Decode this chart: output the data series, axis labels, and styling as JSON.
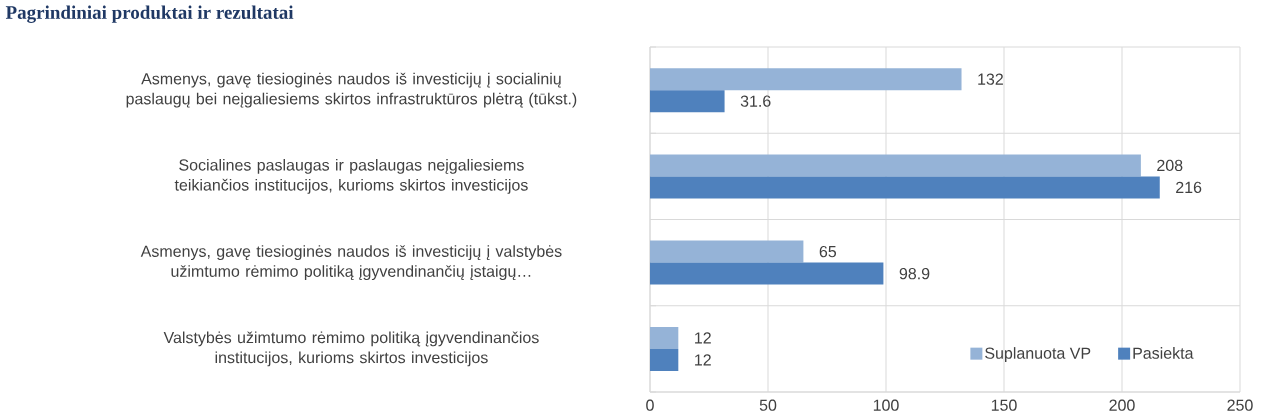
{
  "chart_data": {
    "type": "bar",
    "orientation": "horizontal",
    "title": "Pagrindiniai produktai ir rezultatai",
    "categories": [
      "Asmenys, gavę tiesioginės naudos iš investicijų į socialinių paslaugų bei neįgaliesiems skirtos infrastruktūros plėtrą (tūkst.)",
      "Socialines paslaugas ir paslaugas neįgaliesiems teikiančios institucijos, kurioms skirtos investicijos",
      "Asmenys, gavę tiesioginės naudos iš investicijų į valstybės užimtumo rėmimo politiką įgyvendinančių įstaigų…",
      "Valstybės užimtumo rėmimo politiką įgyvendinančios institucijos, kurioms skirtos investicijos"
    ],
    "series": [
      {
        "name": "Suplanuota VP",
        "color": "#95b3d7",
        "values": [
          132,
          208,
          65,
          12
        ]
      },
      {
        "name": "Pasiekta",
        "color": "#4f81bd",
        "values": [
          31.6,
          216,
          98.9,
          12
        ]
      }
    ],
    "xlim": [
      0,
      250
    ],
    "xticks": [
      0,
      50,
      100,
      150,
      200,
      250
    ],
    "data_labels": true,
    "grid": true,
    "legend": "bottom right"
  }
}
